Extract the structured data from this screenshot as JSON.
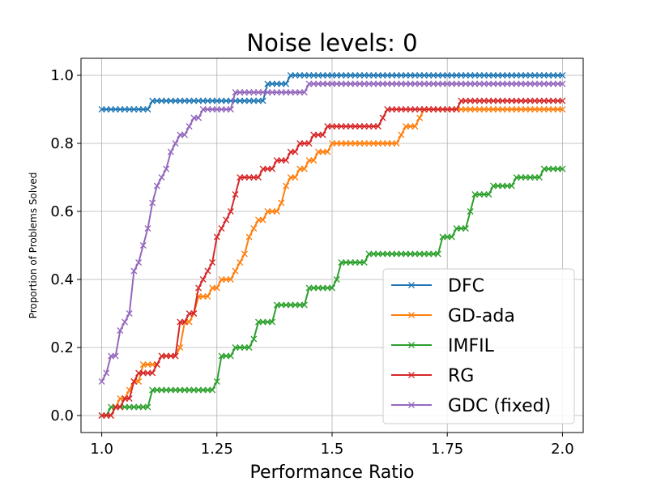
{
  "chart_data": {
    "type": "line",
    "title": "Noise levels: 0",
    "xlabel": "Performance Ratio",
    "ylabel": "Proportion of Problems Solved",
    "xlim": [
      0.955,
      2.045
    ],
    "ylim": [
      -0.05,
      1.05
    ],
    "xticks": [
      1.0,
      1.25,
      1.5,
      1.75,
      2.0
    ],
    "xtick_labels": [
      "1.0",
      "1.25",
      "1.5",
      "1.75",
      "2.0"
    ],
    "yticks": [
      0.0,
      0.2,
      0.4,
      0.6,
      0.8,
      1.0
    ],
    "ytick_labels": [
      "0.0",
      "0.2",
      "0.4",
      "0.6",
      "0.8",
      "1.0"
    ],
    "grid": true,
    "legend_position": "lower-right",
    "marker": "x",
    "series": [
      {
        "name": "DFC",
        "color": "#1f77b4",
        "steps": [
          [
            1.0,
            0.9
          ],
          [
            1.11,
            0.925
          ],
          [
            1.36,
            0.975
          ],
          [
            1.41,
            1.0
          ]
        ]
      },
      {
        "name": "GD-ada",
        "color": "#ff7f0e",
        "steps": [
          [
            1.0,
            0.0
          ],
          [
            1.03,
            0.025
          ],
          [
            1.04,
            0.05
          ],
          [
            1.06,
            0.075
          ],
          [
            1.07,
            0.1
          ],
          [
            1.09,
            0.15
          ],
          [
            1.13,
            0.175
          ],
          [
            1.17,
            0.2
          ],
          [
            1.18,
            0.275
          ],
          [
            1.2,
            0.3
          ],
          [
            1.21,
            0.35
          ],
          [
            1.24,
            0.375
          ],
          [
            1.26,
            0.4
          ],
          [
            1.29,
            0.425
          ],
          [
            1.3,
            0.45
          ],
          [
            1.31,
            0.475
          ],
          [
            1.32,
            0.525
          ],
          [
            1.33,
            0.55
          ],
          [
            1.34,
            0.575
          ],
          [
            1.36,
            0.6
          ],
          [
            1.39,
            0.625
          ],
          [
            1.4,
            0.675
          ],
          [
            1.41,
            0.7
          ],
          [
            1.43,
            0.725
          ],
          [
            1.45,
            0.75
          ],
          [
            1.47,
            0.775
          ],
          [
            1.5,
            0.8
          ],
          [
            1.65,
            0.825
          ],
          [
            1.66,
            0.85
          ],
          [
            1.69,
            0.875
          ],
          [
            1.7,
            0.9
          ]
        ]
      },
      {
        "name": "IMFIL",
        "color": "#2ca02c",
        "steps": [
          [
            1.0,
            0.0
          ],
          [
            1.02,
            0.025
          ],
          [
            1.11,
            0.075
          ],
          [
            1.25,
            0.1
          ],
          [
            1.26,
            0.175
          ],
          [
            1.29,
            0.2
          ],
          [
            1.33,
            0.225
          ],
          [
            1.34,
            0.275
          ],
          [
            1.38,
            0.325
          ],
          [
            1.45,
            0.375
          ],
          [
            1.51,
            0.4
          ],
          [
            1.52,
            0.45
          ],
          [
            1.58,
            0.475
          ],
          [
            1.74,
            0.525
          ],
          [
            1.77,
            0.55
          ],
          [
            1.8,
            0.6
          ],
          [
            1.81,
            0.65
          ],
          [
            1.85,
            0.675
          ],
          [
            1.9,
            0.7
          ],
          [
            1.96,
            0.725
          ]
        ]
      },
      {
        "name": "RG",
        "color": "#d62728",
        "steps": [
          [
            1.0,
            0.0
          ],
          [
            1.03,
            0.025
          ],
          [
            1.05,
            0.05
          ],
          [
            1.07,
            0.1
          ],
          [
            1.08,
            0.125
          ],
          [
            1.12,
            0.15
          ],
          [
            1.13,
            0.175
          ],
          [
            1.17,
            0.275
          ],
          [
            1.19,
            0.3
          ],
          [
            1.21,
            0.375
          ],
          [
            1.22,
            0.4
          ],
          [
            1.23,
            0.425
          ],
          [
            1.24,
            0.45
          ],
          [
            1.25,
            0.525
          ],
          [
            1.26,
            0.55
          ],
          [
            1.27,
            0.575
          ],
          [
            1.28,
            0.6
          ],
          [
            1.29,
            0.65
          ],
          [
            1.3,
            0.7
          ],
          [
            1.35,
            0.725
          ],
          [
            1.38,
            0.75
          ],
          [
            1.41,
            0.775
          ],
          [
            1.43,
            0.8
          ],
          [
            1.46,
            0.825
          ],
          [
            1.49,
            0.85
          ],
          [
            1.61,
            0.875
          ],
          [
            1.62,
            0.9
          ],
          [
            1.78,
            0.925
          ]
        ]
      },
      {
        "name": "GDC (fixed)",
        "color": "#9467bd",
        "steps": [
          [
            1.0,
            0.1
          ],
          [
            1.01,
            0.125
          ],
          [
            1.02,
            0.175
          ],
          [
            1.04,
            0.25
          ],
          [
            1.05,
            0.275
          ],
          [
            1.06,
            0.3
          ],
          [
            1.07,
            0.425
          ],
          [
            1.08,
            0.45
          ],
          [
            1.09,
            0.5
          ],
          [
            1.1,
            0.55
          ],
          [
            1.11,
            0.625
          ],
          [
            1.12,
            0.675
          ],
          [
            1.13,
            0.7
          ],
          [
            1.14,
            0.725
          ],
          [
            1.15,
            0.775
          ],
          [
            1.16,
            0.8
          ],
          [
            1.17,
            0.825
          ],
          [
            1.19,
            0.85
          ],
          [
            1.2,
            0.875
          ],
          [
            1.22,
            0.9
          ],
          [
            1.29,
            0.95
          ],
          [
            1.45,
            0.975
          ]
        ]
      }
    ]
  }
}
